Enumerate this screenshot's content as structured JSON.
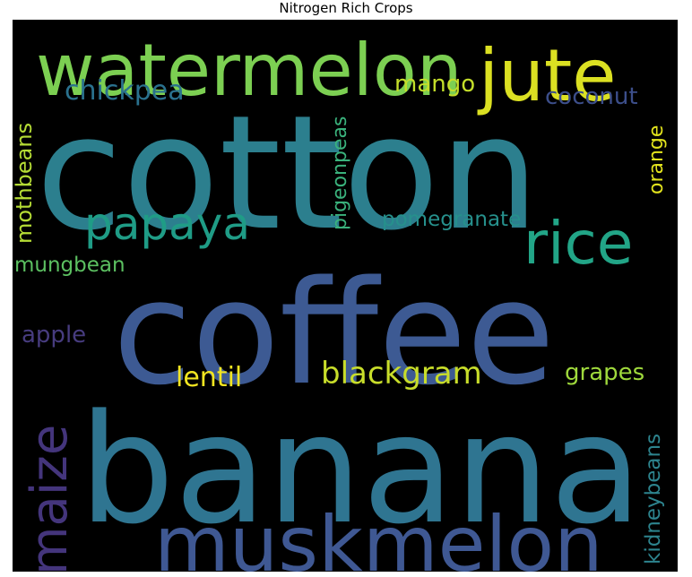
{
  "chart_data": {
    "type": "wordcloud",
    "title": "Nitrogen Rich Crops",
    "background": "#000000",
    "words": [
      {
        "text": "cotton",
        "color": "#2c7f8e",
        "rotated": false
      },
      {
        "text": "coffee",
        "color": "#3d5a93",
        "rotated": false
      },
      {
        "text": "banana",
        "color": "#2f7591",
        "rotated": false
      },
      {
        "text": "watermelon",
        "color": "#7ccf52",
        "rotated": false
      },
      {
        "text": "jute",
        "color": "#dbe022",
        "rotated": false
      },
      {
        "text": "muskmelon",
        "color": "#3f5893",
        "rotated": false
      },
      {
        "text": "rice",
        "color": "#22a587",
        "rotated": false
      },
      {
        "text": "papaya",
        "color": "#1f9c86",
        "rotated": false
      },
      {
        "text": "maize",
        "color": "#44357c",
        "rotated": true
      },
      {
        "text": "blackgram",
        "color": "#c8dd2a",
        "rotated": false
      },
      {
        "text": "chickpea",
        "color": "#2a718e",
        "rotated": false
      },
      {
        "text": "mango",
        "color": "#c4de2a",
        "rotated": false
      },
      {
        "text": "coconut",
        "color": "#3c4e8a",
        "rotated": false
      },
      {
        "text": "pomegranate",
        "color": "#26908c",
        "rotated": false
      },
      {
        "text": "mothbeans",
        "color": "#b5dc35",
        "rotated": true
      },
      {
        "text": "pigeonpeas",
        "color": "#3ab27c",
        "rotated": true
      },
      {
        "text": "orange",
        "color": "#e2e31d",
        "rotated": true
      },
      {
        "text": "mungbean",
        "color": "#5cc061",
        "rotated": false
      },
      {
        "text": "apple",
        "color": "#473c7f",
        "rotated": false
      },
      {
        "text": "lentil",
        "color": "#f2e521",
        "rotated": false
      },
      {
        "text": "grapes",
        "color": "#9fd93c",
        "rotated": false
      },
      {
        "text": "kidneybeans",
        "color": "#2d848e",
        "rotated": true
      }
    ]
  }
}
